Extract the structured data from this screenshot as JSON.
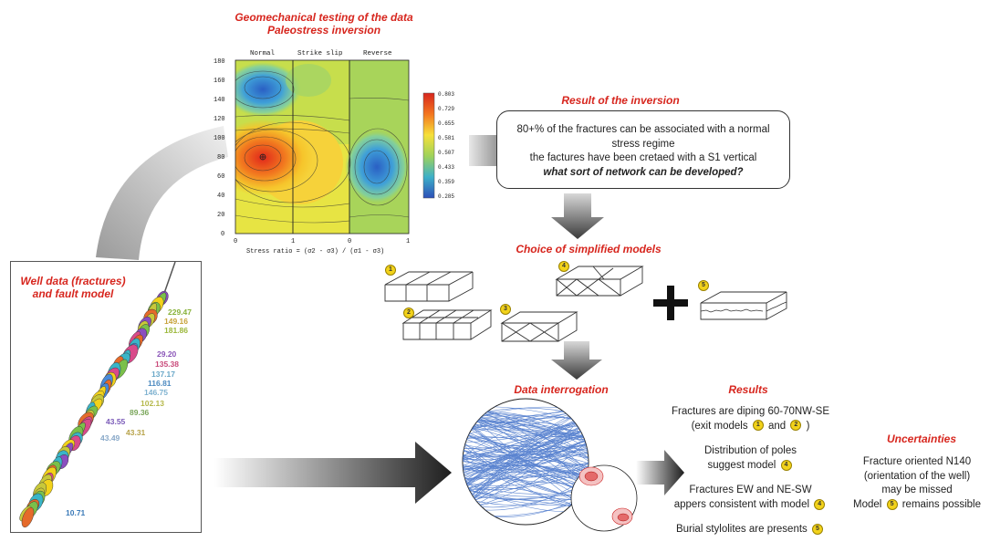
{
  "geomech": {
    "title1": "Geomechanical testing of the data",
    "title2": "Paleostress inversion",
    "regimes": [
      "Normal",
      "Strike slip",
      "Reverse"
    ],
    "y_ticks": [
      "180",
      "160",
      "140",
      "120",
      "100",
      "80",
      "60",
      "40",
      "20",
      "0"
    ],
    "x_ticks": [
      "0",
      "1",
      "0",
      "1"
    ],
    "x_label": "Stress ratio = (σ2 - σ3) / (σ1 - σ3)",
    "colorbar": [
      "0.803",
      "0.729",
      "0.655",
      "0.581",
      "0.507",
      "0.433",
      "0.359",
      "0.285"
    ],
    "colors": {
      "high": "#e52a1a",
      "mid": "#f3e53a",
      "low": "#2f6fc9"
    }
  },
  "inversion": {
    "title": "Result of the inversion",
    "line1": "80+% of the fractures can be associated with a normal",
    "line2": "stress regime",
    "line3": "the factures have been cretaed with a S1 vertical",
    "line4": "what sort of network can be developed?"
  },
  "models": {
    "title": "Choice of simplified models",
    "labels": [
      "1",
      "2",
      "3",
      "4",
      "5"
    ]
  },
  "well": {
    "title1": "Well data (fractures)",
    "title2": "and fault model",
    "depths": [
      "229.47",
      "149.16",
      "181.86",
      "29.20",
      "135.38",
      "137.17",
      "116.81",
      "146.75",
      "102.13",
      "89.36",
      "43.31",
      "43.55",
      "43.49",
      "10.71"
    ]
  },
  "interrogation": {
    "title": "Data interrogation"
  },
  "results": {
    "title": "Results",
    "r1a": "Fractures are diping 60-70NW-SE",
    "r1b": "(exit models",
    "r1c": "and",
    "r1d": ")",
    "r2a": "Distribution of poles",
    "r2b": "suggest model",
    "r3a": "Fractures EW and NE-SW",
    "r3b": "appers consistent with model",
    "r4": "Burial stylolites are presents"
  },
  "uncertainties": {
    "title": "Uncertainties",
    "l1": "Fracture oriented N140",
    "l2": "(orientation of the well)",
    "l3": "may be missed",
    "l4a": "Model",
    "l4b": "remains possible"
  }
}
